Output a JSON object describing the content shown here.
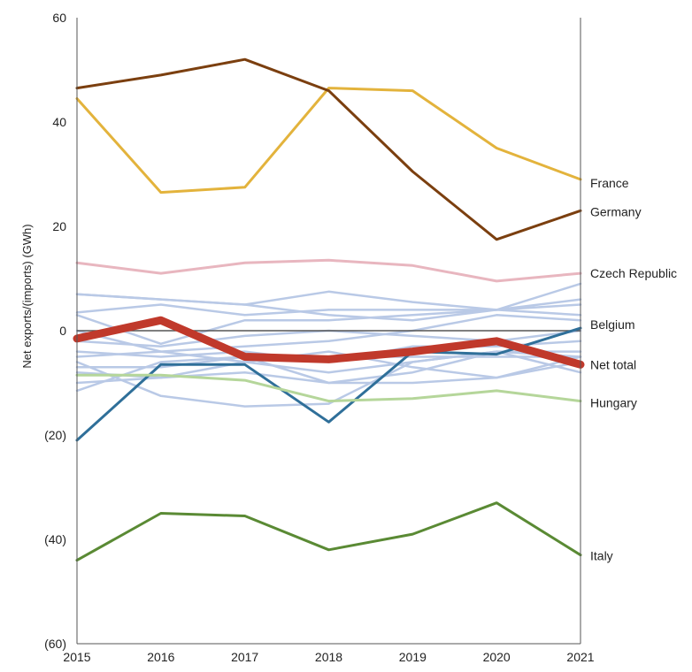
{
  "chart_data": {
    "type": "line",
    "ylabel": "Net exports/(imports) (GWh)",
    "xlabel": "",
    "title": "",
    "x": [
      "2015",
      "2016",
      "2017",
      "2018",
      "2019",
      "2020",
      "2021"
    ],
    "ylim": [
      -60,
      60
    ],
    "yticks": [
      60,
      40,
      20,
      0,
      -20,
      -40,
      -60
    ],
    "ytick_labels": [
      "60",
      "40",
      "20",
      "0",
      "(20)",
      "(40)",
      "(60)"
    ],
    "grid": false,
    "zero_line": true,
    "series": [
      {
        "name": "France",
        "color": "#e3b33c",
        "width": 3,
        "values": [
          44.5,
          26.5,
          27.5,
          46.5,
          46,
          35,
          29
        ]
      },
      {
        "name": "Germany",
        "color": "#7b3f0f",
        "width": 3,
        "values": [
          46.5,
          49,
          52,
          46,
          30.5,
          17.5,
          23
        ]
      },
      {
        "name": "Czech Republic",
        "color": "#e8b6bf",
        "width": 3,
        "values": [
          13,
          11,
          13,
          13.5,
          12.5,
          9.5,
          11
        ]
      },
      {
        "name": "Belgium",
        "color": "#2f6f99",
        "width": 3,
        "values": [
          -21,
          -6.5,
          -6.5,
          -17.5,
          -4,
          -4.5,
          0.5
        ]
      },
      {
        "name": "Net total",
        "color": "#c0392b",
        "width": 9,
        "values": [
          -1.5,
          2,
          -5,
          -5.5,
          -4,
          -2,
          -6.5
        ]
      },
      {
        "name": "Hungary",
        "color": "#b5d69a",
        "width": 3,
        "values": [
          -8.5,
          -8.5,
          -9.5,
          -13.5,
          -13,
          -11.5,
          -13.5
        ]
      },
      {
        "name": "Italy",
        "color": "#5a8a34",
        "width": 3,
        "values": [
          -44,
          -35,
          -35.5,
          -42,
          -39,
          -33,
          -43
        ]
      }
    ],
    "background_series": {
      "color": "#b9c9e6",
      "width": 2.5,
      "values": [
        [
          7,
          6,
          5,
          7.5,
          5.5,
          4,
          9
        ],
        [
          7,
          6,
          5,
          3,
          2,
          4,
          5
        ],
        [
          3.5,
          5,
          3,
          4,
          4,
          4,
          6
        ],
        [
          3,
          -2.5,
          2,
          2,
          3,
          4,
          3
        ],
        [
          0,
          -4,
          -3,
          -2,
          0,
          3,
          2
        ],
        [
          -2,
          -3,
          -1,
          0,
          -1,
          -2,
          0
        ],
        [
          -4,
          -5,
          -4,
          -6,
          -3,
          -3,
          -2
        ],
        [
          -5,
          -4,
          -6,
          -8,
          -6,
          -4,
          -5
        ],
        [
          -7,
          -7,
          -5,
          -10,
          -8,
          -4,
          -8
        ],
        [
          -8,
          -9,
          -8,
          -10,
          -10,
          -9,
          -5
        ],
        [
          -10,
          -9,
          -6,
          -4,
          -7,
          -9,
          -6
        ],
        [
          -11.5,
          -6,
          -5,
          -5,
          -5,
          -5,
          -5
        ],
        [
          -6,
          -12.5,
          -14.5,
          -14,
          -6,
          -4,
          -4
        ]
      ]
    }
  }
}
